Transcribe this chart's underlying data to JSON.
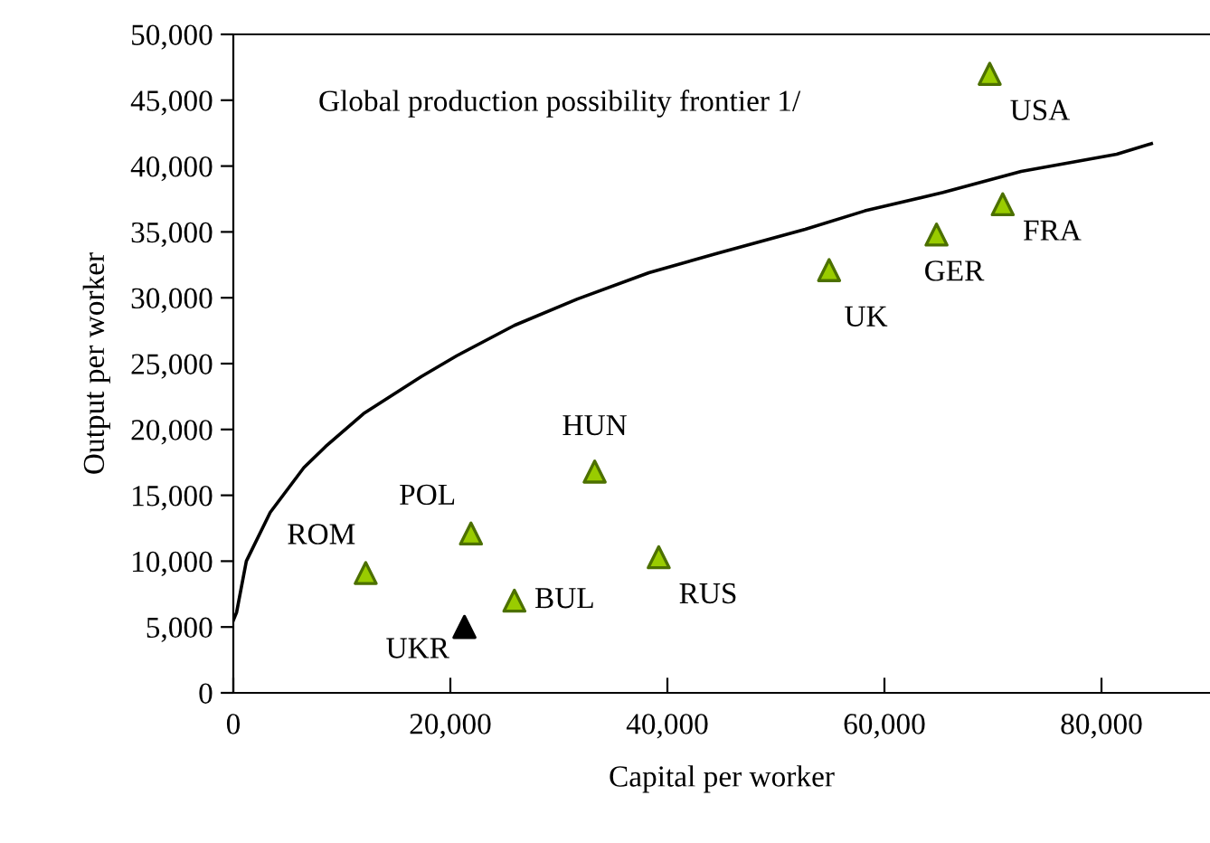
{
  "chart_data": {
    "type": "scatter",
    "xlabel": "Capital per worker",
    "ylabel": "Output per worker",
    "xlim": [
      0,
      90000
    ],
    "xticks": [
      {
        "value": 0,
        "label": "0"
      },
      {
        "value": 20000,
        "label": "20,000"
      },
      {
        "value": 40000,
        "label": "40,000"
      },
      {
        "value": 60000,
        "label": "60,000"
      },
      {
        "value": 80000,
        "label": "80,000"
      }
    ],
    "ylim": [
      0,
      50000
    ],
    "yticks": [
      {
        "value": 0,
        "label": "0"
      },
      {
        "value": 5000,
        "label": "5,000"
      },
      {
        "value": 10000,
        "label": "10,000"
      },
      {
        "value": 15000,
        "label": "15,000"
      },
      {
        "value": 20000,
        "label": "20,000"
      },
      {
        "value": 25000,
        "label": "25,000"
      },
      {
        "value": 30000,
        "label": "30,000"
      },
      {
        "value": 35000,
        "label": "35,000"
      },
      {
        "value": 40000,
        "label": "40,000"
      },
      {
        "value": 45000,
        "label": "45,000"
      },
      {
        "value": 50000,
        "label": "50,000"
      }
    ],
    "grid": false,
    "legend": false,
    "marker": "triangle",
    "series": [
      {
        "type": "line",
        "color": "#000000",
        "marker": "none",
        "line_style": "solid",
        "x": [
          0,
          300,
          1200,
          3400,
          6500,
          8500,
          12000,
          17300,
          20600,
          25900,
          31700,
          38300,
          44700,
          52700,
          58200,
          65400,
          72600,
          81400,
          84600
        ],
        "values": [
          5500,
          6100,
          10000,
          13700,
          17100,
          18700,
          21200,
          24000,
          25600,
          27900,
          29900,
          31900,
          33400,
          35200,
          36600,
          38000,
          39600,
          40900,
          41700
        ]
      },
      {
        "color": "#99cc00",
        "x": [
          69700,
          70900,
          64800,
          54900,
          33300,
          39200,
          21900,
          25900,
          12200
        ],
        "values": [
          47000,
          37100,
          34800,
          32100,
          16800,
          10300,
          12100,
          7000,
          9100
        ]
      },
      {
        "color": "#000000",
        "x": [
          21300
        ],
        "values": [
          5000
        ]
      }
    ],
    "annotations": [
      "Global production possibility frontier 1/",
      {
        "text": "USA",
        "x": 69700,
        "y": 47000
      },
      {
        "text": "FRA",
        "x": 70900,
        "y": 37100
      },
      {
        "text": "GER",
        "x": 64800,
        "y": 34800
      },
      {
        "text": "UK",
        "x": 54900,
        "y": 32100
      },
      {
        "text": "HUN",
        "x": 33300,
        "y": 16800
      },
      {
        "text": "RUS",
        "x": 39200,
        "y": 10300
      },
      {
        "text": "POL",
        "x": 21900,
        "y": 12100
      },
      {
        "text": "BUL",
        "x": 25900,
        "y": 7000
      },
      {
        "text": "ROM",
        "x": 12200,
        "y": 9100
      },
      {
        "text": "UKR",
        "x": 21300,
        "y": 5000
      }
    ]
  }
}
